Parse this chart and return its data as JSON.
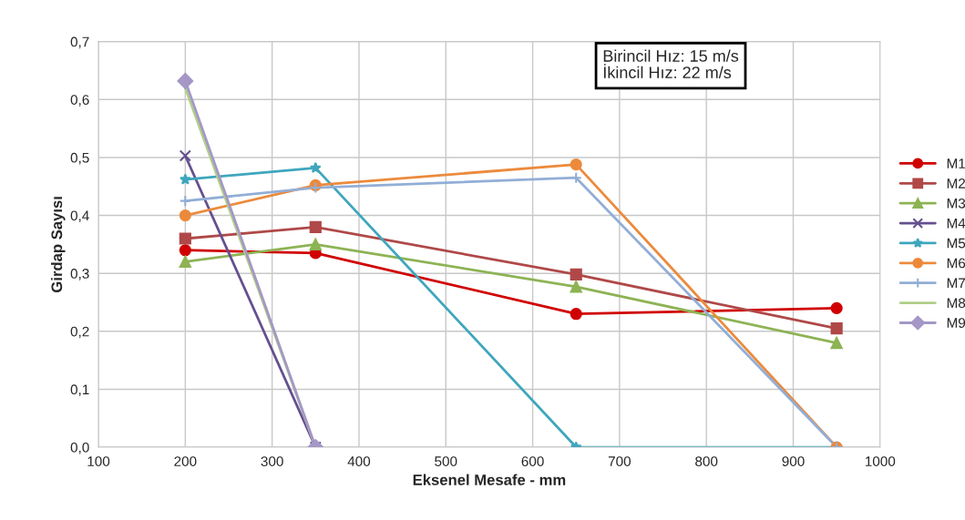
{
  "chart_data": {
    "type": "line",
    "xlabel": "Eksenel Mesafe - mm",
    "ylabel": "Girdap Sayısı",
    "xlim": [
      100,
      1000
    ],
    "xticks": [
      100,
      200,
      300,
      400,
      500,
      600,
      700,
      800,
      900,
      1000
    ],
    "ylim": [
      0,
      0.7
    ],
    "yticks": [
      {
        "value": 0,
        "label": "0,0"
      },
      {
        "value": 0.1,
        "label": "0,1"
      },
      {
        "value": 0.2,
        "label": "0,2"
      },
      {
        "value": 0.3,
        "label": "0,3"
      },
      {
        "value": 0.4,
        "label": "0,4"
      },
      {
        "value": 0.5,
        "label": "0,5"
      },
      {
        "value": 0.6,
        "label": "0,6"
      },
      {
        "value": 0.7,
        "label": "0,7"
      }
    ],
    "grid": true,
    "legend": "right",
    "annotations": [
      "Birincil Hız: 15 m/s\nİkincil Hız: 22 m/s"
    ],
    "series": [
      {
        "name": "M1",
        "color": "#d00000",
        "marker": "circle",
        "x": [
          200,
          350,
          650,
          950
        ],
        "values": [
          0.34,
          0.335,
          0.23,
          0.24
        ]
      },
      {
        "name": "M2",
        "color": "#b04848",
        "marker": "square",
        "x": [
          200,
          350,
          650,
          950
        ],
        "values": [
          0.36,
          0.38,
          0.298,
          0.205
        ]
      },
      {
        "name": "M3",
        "color": "#8db354",
        "marker": "triangle",
        "x": [
          200,
          350,
          650,
          950
        ],
        "values": [
          0.32,
          0.35,
          0.277,
          0.18
        ]
      },
      {
        "name": "M4",
        "color": "#65508f",
        "marker": "cross",
        "x": [
          200,
          350
        ],
        "values": [
          0.503,
          0
        ]
      },
      {
        "name": "M5",
        "color": "#3ea6bd",
        "marker": "star",
        "x": [
          200,
          350,
          650,
          950
        ],
        "values": [
          0.462,
          0.482,
          0,
          0
        ]
      },
      {
        "name": "M6",
        "color": "#ec8a3c",
        "marker": "circle",
        "x": [
          200,
          350,
          650,
          950
        ],
        "values": [
          0.4,
          0.452,
          0.488,
          0
        ]
      },
      {
        "name": "M7",
        "color": "#92aed6",
        "marker": "plus",
        "x": [
          200,
          350,
          650,
          950
        ],
        "values": [
          0.425,
          0.448,
          0.465,
          0
        ]
      },
      {
        "name": "M8",
        "color": "#b0cf88",
        "marker": "none",
        "x": [
          200,
          350
        ],
        "values": [
          0.62,
          0
        ]
      },
      {
        "name": "M9",
        "color": "#a597c6",
        "marker": "diamond",
        "x": [
          200,
          350
        ],
        "values": [
          0.632,
          0
        ]
      }
    ]
  }
}
